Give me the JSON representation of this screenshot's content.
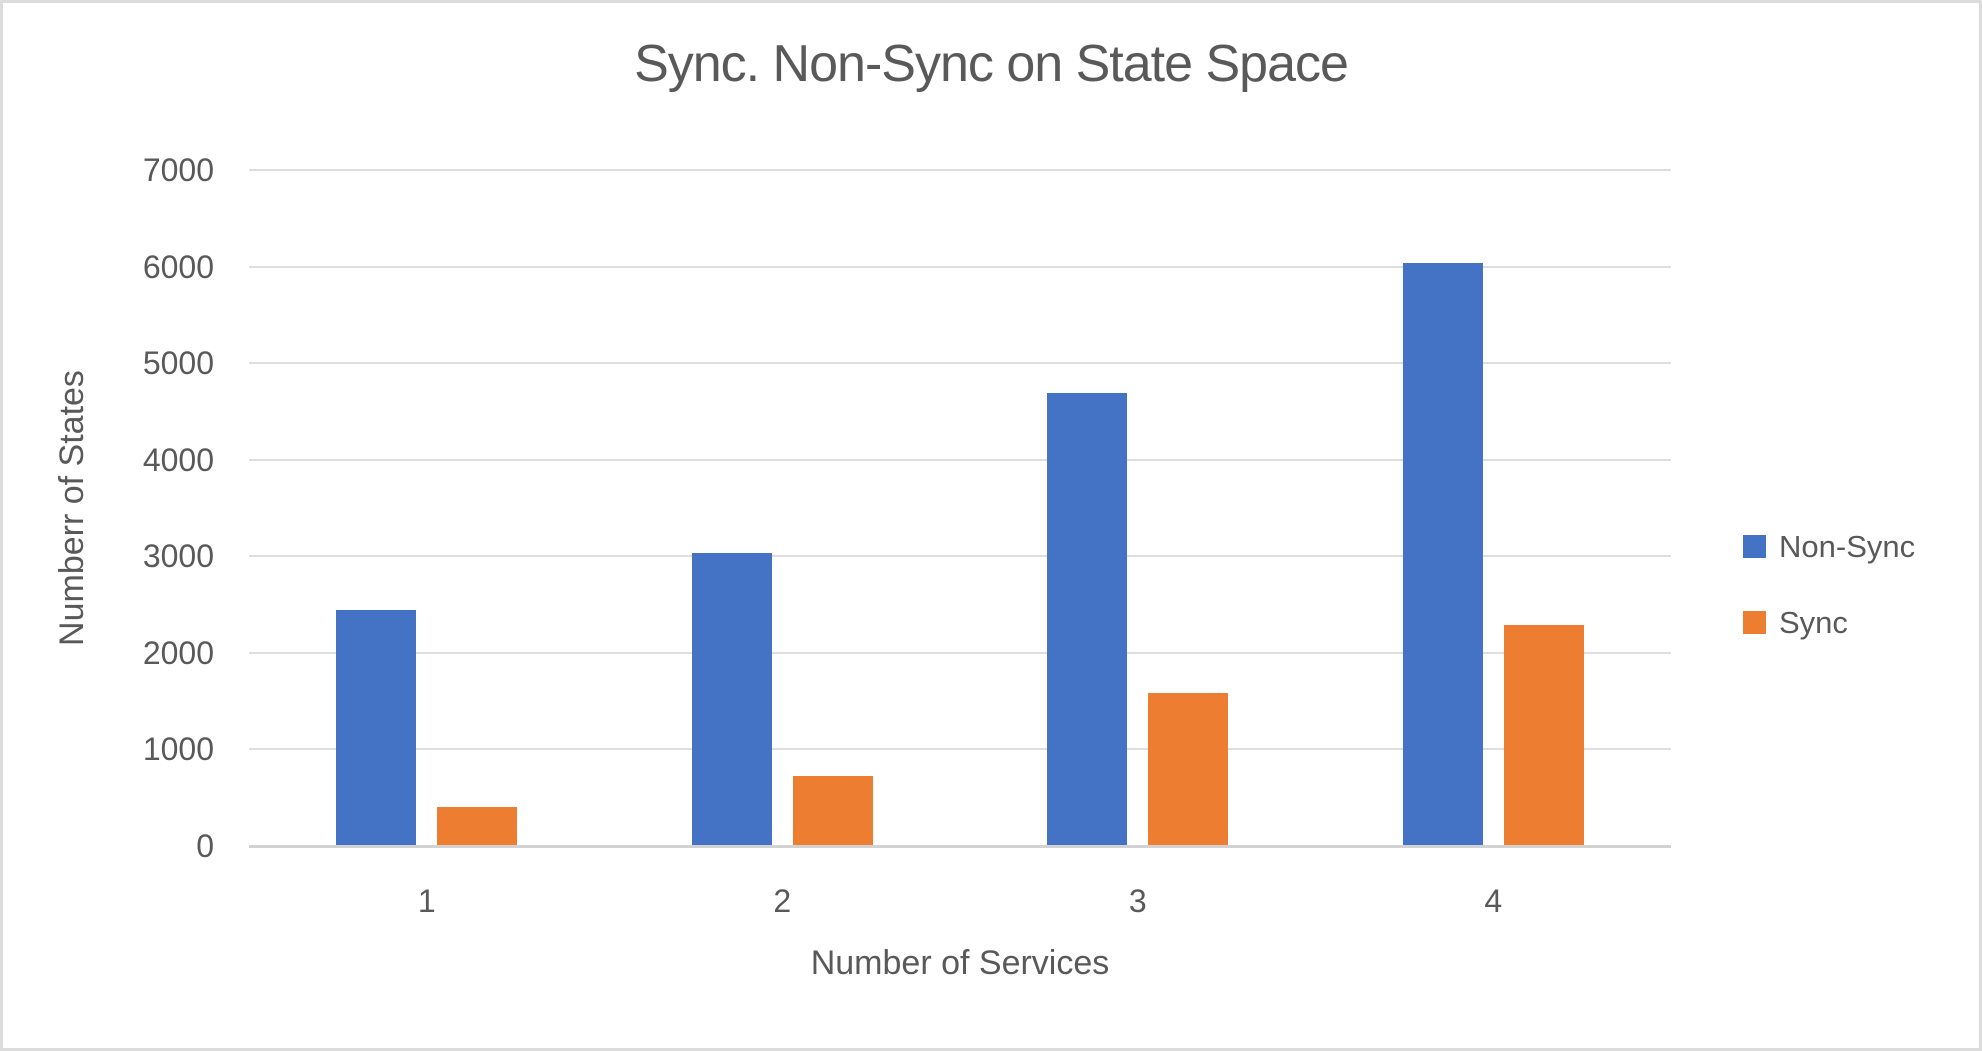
{
  "chart_data": {
    "type": "bar",
    "title": "Sync. Non-Sync on State Space",
    "xlabel": "Number of Services",
    "ylabel": "Numberr of States",
    "categories": [
      "1",
      "2",
      "3",
      "4"
    ],
    "series": [
      {
        "name": "Non-Sync",
        "color": "#4472C4",
        "values": [
          2440,
          3030,
          4690,
          6040
        ]
      },
      {
        "name": "Sync",
        "color": "#ED7D31",
        "values": [
          400,
          720,
          1580,
          2290
        ]
      }
    ],
    "ylim": [
      0,
      7000
    ],
    "ytick_step": 1000,
    "grid": true,
    "legend_position": "right"
  }
}
